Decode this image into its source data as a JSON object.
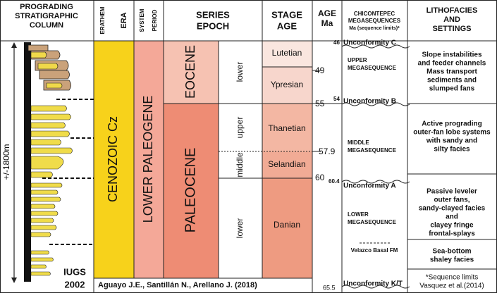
{
  "headers": {
    "column": [
      "PROGRADING",
      "STRATIGRAPHIC",
      "COLUMN"
    ],
    "erathem": [
      "ERATHEM",
      "ERA"
    ],
    "system": [
      "SYSTEM",
      "PERIOD"
    ],
    "series": [
      "SERIES",
      "EPOCH"
    ],
    "stage": [
      "STAGE",
      "AGE"
    ],
    "age": [
      "AGE",
      "Ma"
    ],
    "mega": [
      "CHICONTEPEC",
      "MEGASEQUENCES",
      "Ma (sequence limits)*"
    ],
    "litho": [
      "LITHOFACIES",
      "AND",
      "SETTINGS"
    ]
  },
  "column": {
    "thickness": "+/-1800m",
    "reference": [
      "IUGS",
      "2002"
    ]
  },
  "erathem": "CENOZOIC Cz",
  "system": "LOWER PALEOGENE",
  "epochs": [
    "EOCENE",
    "PALEOCENE"
  ],
  "subseries": [
    "lower",
    "upper",
    "middle",
    "lower"
  ],
  "stages": [
    "Lutetian",
    "Ypresian",
    "Thanetian",
    "Selandian",
    "Danian"
  ],
  "ages": [
    "49",
    "55",
    "57.9",
    "60",
    "65.5"
  ],
  "sequence_limits": [
    {
      "age": "46",
      "name": "Unconformity C"
    },
    {
      "age": "54",
      "name": "Unconformity B"
    },
    {
      "age": "60.4",
      "name": "Unconformity A"
    },
    {
      "name": "Unconformity K/T"
    }
  ],
  "megasequences": [
    [
      "UPPER",
      "MEGASEQUENCE"
    ],
    [
      "MIDDLE",
      "MEGASEQUENCE"
    ],
    [
      "LOWER",
      "MEGASEQUENCE"
    ]
  ],
  "formation": "Velazco Basal FM",
  "lithofacies": [
    [
      "Slope instabilities",
      "and feeder channels",
      "Mass transport",
      "sediments and",
      "slumped fans"
    ],
    [
      "Active prograding",
      "outer-fan lobe systems",
      "with sandy and",
      "silty facies"
    ],
    [
      "Passive leveler",
      "outer fans,",
      "sandy-clayed facies",
      "and",
      "clayey fringe",
      "frontal-splays"
    ],
    [
      "Sea-bottom",
      "shaley facies"
    ],
    [
      "*Sequence limits",
      "Vasquez et al.(2014)"
    ]
  ],
  "credit": "Aguayo J.E., Santillán N., Arellano J. (2018)"
}
